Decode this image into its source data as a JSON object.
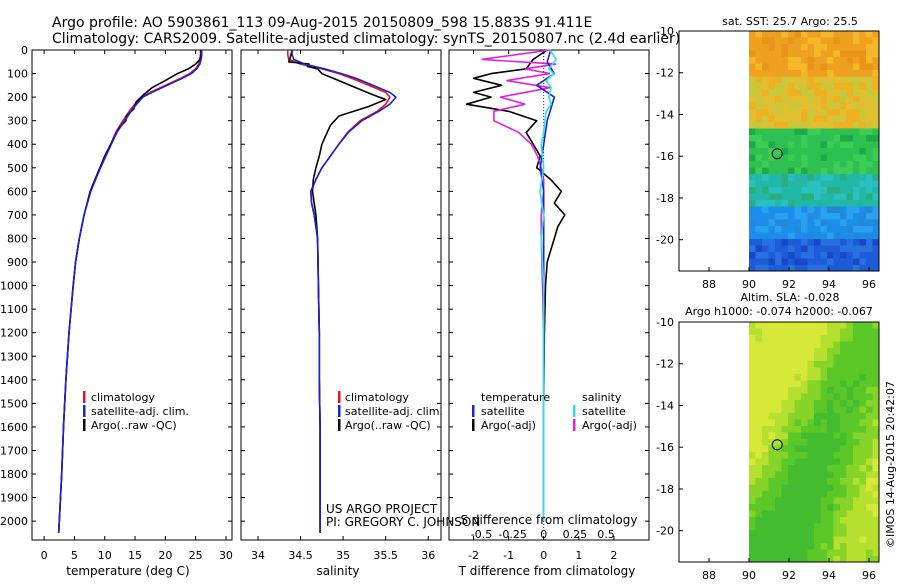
{
  "header": {
    "title_line1": "Argo profile: AO 5903861_113 09-Aug-2015 20150809_598 15.883S 91.411E",
    "title_line2": "Climatology: CARS2009. Satellite-adjusted climatology: synTS_20150807.nc (2.4d earlier)"
  },
  "colors": {
    "climatology": "#e8141a",
    "satellite": "#1a22d6",
    "argo": "#000000",
    "salinity_satellite": "#2ee0e8",
    "salinity_argo": "#e020e0"
  },
  "stamp": "©IMOS 14-Aug-2015 20:42:07",
  "credits": {
    "line1": "US ARGO PROJECT",
    "line2": "PI: GREGORY C. JOHNSON"
  },
  "chart_data": [
    {
      "id": "temperature",
      "type": "line",
      "xlabel": "temperature (deg C)",
      "ylabel": "",
      "xlim": [
        -2,
        31
      ],
      "ylim": [
        2080,
        0
      ],
      "xticks": [
        "0",
        "5",
        "10",
        "15",
        "20",
        "25",
        "30"
      ],
      "xtick_values": [
        0,
        5,
        10,
        15,
        20,
        25,
        30
      ],
      "yticks": [
        "0",
        "100",
        "200",
        "300",
        "400",
        "500",
        "600",
        "700",
        "800",
        "900",
        "1000",
        "1100",
        "1200",
        "1300",
        "1400",
        "1500",
        "1600",
        "1700",
        "1800",
        "1900",
        "2000"
      ],
      "ytick_values": [
        0,
        100,
        200,
        300,
        400,
        500,
        600,
        700,
        800,
        900,
        1000,
        1100,
        1200,
        1300,
        1400,
        1500,
        1600,
        1700,
        1800,
        1900,
        2000
      ],
      "legend": [
        "climatology",
        "satellite-adj. clim.",
        "Argo(..raw -QC)"
      ],
      "series": [
        {
          "name": "climatology",
          "depth": [
            0,
            20,
            40,
            60,
            80,
            100,
            120,
            150,
            180,
            200,
            250,
            300,
            350,
            400,
            450,
            500,
            550,
            600,
            700,
            800,
            900,
            1000,
            1200,
            1400,
            1600,
            1800,
            2000,
            2050
          ],
          "values": [
            25.8,
            25.8,
            25.7,
            25.5,
            25.0,
            24.0,
            22.5,
            20.0,
            17.5,
            16.0,
            14.3,
            13.0,
            11.8,
            11.0,
            10.1,
            9.2,
            8.4,
            7.6,
            6.6,
            5.8,
            5.2,
            4.8,
            4.1,
            3.6,
            3.2,
            2.9,
            2.5,
            2.4
          ]
        },
        {
          "name": "satellite-adj. clim.",
          "depth": [
            0,
            20,
            40,
            60,
            80,
            100,
            120,
            150,
            180,
            200,
            250,
            300,
            350,
            400,
            450,
            500,
            550,
            600,
            700,
            800,
            900,
            1000,
            1200,
            1400,
            1600,
            1800,
            2000,
            2050
          ],
          "values": [
            26.0,
            26.0,
            25.9,
            25.7,
            25.2,
            24.3,
            22.8,
            20.3,
            17.8,
            16.3,
            14.6,
            13.3,
            12.0,
            11.1,
            10.2,
            9.3,
            8.5,
            7.7,
            6.6,
            5.8,
            5.2,
            4.8,
            4.1,
            3.6,
            3.2,
            2.9,
            2.5,
            2.4
          ]
        },
        {
          "name": "Argo(..raw -QC)",
          "depth": [
            0,
            20,
            40,
            60,
            80,
            100,
            130,
            160,
            190,
            220,
            250,
            280,
            300,
            330,
            360,
            400,
            450,
            500,
            550,
            600,
            700,
            800,
            900,
            1000,
            1200,
            1400,
            1600,
            1800,
            2000,
            2050
          ],
          "values": [
            25.9,
            25.9,
            25.7,
            25.0,
            23.8,
            22.0,
            20.0,
            17.8,
            16.4,
            15.2,
            14.8,
            13.6,
            13.5,
            12.4,
            11.8,
            11.0,
            10.0,
            9.2,
            8.4,
            7.6,
            6.6,
            5.8,
            5.2,
            4.8,
            4.1,
            3.6,
            3.2,
            2.9,
            2.5,
            2.4
          ]
        }
      ]
    },
    {
      "id": "salinity",
      "type": "line",
      "xlabel": "salinity",
      "ylabel": "",
      "xlim": [
        33.8,
        36.15
      ],
      "ylim": [
        2080,
        0
      ],
      "xticks": [
        "34",
        "34.5",
        "35",
        "35.5",
        "36"
      ],
      "xtick_values": [
        34,
        34.5,
        35,
        35.5,
        36
      ],
      "legend": [
        "climatology",
        "satellite-adj. clim.",
        "Argo(..raw -QC)"
      ],
      "series": [
        {
          "name": "climatology",
          "depth": [
            0,
            20,
            40,
            60,
            80,
            100,
            120,
            150,
            180,
            200,
            230,
            260,
            300,
            350,
            400,
            450,
            500,
            550,
            600,
            650,
            700,
            800,
            1000,
            1200,
            1400,
            1600,
            1800,
            2000,
            2050
          ],
          "values": [
            34.35,
            34.35,
            34.36,
            34.5,
            34.75,
            34.95,
            35.1,
            35.3,
            35.5,
            35.55,
            35.5,
            35.4,
            35.2,
            35.05,
            34.95,
            34.85,
            34.75,
            34.68,
            34.62,
            34.63,
            34.66,
            34.7,
            34.71,
            34.72,
            34.72,
            34.73,
            34.73,
            34.73,
            34.73
          ]
        },
        {
          "name": "satellite-adj. clim.",
          "depth": [
            0,
            20,
            40,
            60,
            80,
            100,
            120,
            150,
            180,
            200,
            230,
            260,
            300,
            350,
            400,
            450,
            500,
            550,
            600,
            650,
            700,
            800,
            1000,
            1200,
            1400,
            1600,
            1800,
            2000,
            2050
          ],
          "values": [
            34.4,
            34.4,
            34.42,
            34.55,
            34.78,
            34.98,
            35.15,
            35.35,
            35.55,
            35.62,
            35.55,
            35.42,
            35.22,
            35.06,
            34.95,
            34.85,
            34.75,
            34.68,
            34.62,
            34.63,
            34.66,
            34.7,
            34.71,
            34.72,
            34.72,
            34.73,
            34.73,
            34.73,
            34.73
          ]
        },
        {
          "name": "Argo(..raw -QC)",
          "depth": [
            0,
            30,
            50,
            60,
            70,
            80,
            100,
            130,
            160,
            190,
            210,
            240,
            280,
            320,
            360,
            400,
            450,
            500,
            550,
            600,
            650,
            700,
            800,
            1000,
            1200,
            1400,
            1600,
            1800,
            2000,
            2050
          ],
          "values": [
            34.4,
            34.38,
            34.36,
            34.6,
            34.58,
            34.7,
            34.75,
            34.95,
            35.15,
            35.35,
            35.5,
            35.3,
            34.95,
            34.85,
            34.8,
            34.75,
            34.72,
            34.68,
            34.65,
            34.64,
            34.66,
            34.68,
            34.7,
            34.71,
            34.72,
            34.72,
            34.73,
            34.73,
            34.73,
            34.73
          ]
        }
      ]
    },
    {
      "id": "differences",
      "type": "line",
      "xlabel": "T difference from climatology",
      "xlabel_top": "S difference from climatology",
      "xlim": [
        -2.7,
        3.0
      ],
      "ylim": [
        2080,
        0
      ],
      "xticks": [
        "-2",
        "-1",
        "0",
        "1",
        "2"
      ],
      "xtick_values": [
        -2,
        -1,
        0,
        1,
        2
      ],
      "xticks_salinity": [
        "-0.5",
        "-0.25",
        "0",
        "0.25",
        "0.5"
      ],
      "xtick_values_salinity": [
        -0.5,
        -0.25,
        0,
        0.25,
        0.5
      ],
      "legend_titles": [
        "temperature",
        "salinity"
      ],
      "legend": [
        "satellite",
        "Argo(-adj)",
        "satellite",
        "Argo(-adj)"
      ],
      "series": [
        {
          "name": "T satellite",
          "depth": [
            0,
            50,
            100,
            150,
            200,
            250,
            300,
            400,
            500,
            600,
            700,
            800,
            1000,
            1500,
            2000
          ],
          "values": [
            0.2,
            0.1,
            0.3,
            -0.2,
            0.3,
            0.2,
            0.1,
            0.0,
            -0.1,
            0.0,
            0.0,
            0.0,
            0.0,
            0.0,
            0.0
          ]
        },
        {
          "name": "T Argo(-adj)",
          "depth": [
            0,
            40,
            80,
            100,
            120,
            150,
            180,
            200,
            230,
            260,
            300,
            350,
            400,
            450,
            500,
            550,
            600,
            650,
            700,
            750,
            800,
            900,
            1000,
            1200,
            1500,
            1800,
            2000
          ],
          "values": [
            0.1,
            -0.3,
            -0.5,
            -1.5,
            -2.0,
            -1.2,
            -2.0,
            -1.5,
            -2.2,
            -1.0,
            -0.2,
            -0.5,
            -0.3,
            -0.1,
            -0.2,
            0.2,
            0.5,
            0.3,
            0.6,
            0.4,
            0.3,
            0.1,
            0.05,
            0.02,
            0.0,
            0.0,
            0.0
          ]
        },
        {
          "name": "S satellite",
          "depth": [
            0,
            40,
            80,
            100,
            130,
            160,
            200,
            230,
            260,
            300,
            350,
            400,
            500,
            600,
            700,
            800,
            1000,
            1500,
            2000
          ],
          "values": [
            0.05,
            0.1,
            0.04,
            0.08,
            0.02,
            0.06,
            0.04,
            0.06,
            0.02,
            0.01,
            0.0,
            -0.02,
            0.0,
            -0.03,
            0.0,
            -0.02,
            0.0,
            0.0,
            0.0
          ]
        },
        {
          "name": "S Argo(-adj)",
          "depth": [
            0,
            40,
            60,
            80,
            100,
            130,
            160,
            200,
            230,
            260,
            300,
            350,
            400,
            450,
            500,
            550,
            600,
            700,
            800,
            1000,
            1200,
            1500,
            1800,
            2000
          ],
          "values": [
            0.05,
            -0.5,
            0.1,
            -0.15,
            0.05,
            -0.3,
            0.05,
            -0.35,
            -0.15,
            -0.4,
            -0.4,
            -0.2,
            -0.1,
            -0.05,
            -0.02,
            0.0,
            0.0,
            -0.02,
            -0.02,
            -0.01,
            0.0,
            0.0,
            0.0,
            0.0
          ]
        }
      ]
    },
    {
      "id": "sst_map",
      "type": "heatmap",
      "title": "sat. SST: 25.7  Argo: 25.5",
      "xlim": [
        86.5,
        96.5
      ],
      "ylim": [
        -21.5,
        -10
      ],
      "xticks": [
        "88",
        "90",
        "92",
        "94",
        "96"
      ],
      "xtick_values": [
        88,
        90,
        92,
        94,
        96
      ],
      "yticks": [
        "-10",
        "-12",
        "-14",
        "-16",
        "-18",
        "-20"
      ],
      "ytick_values": [
        -10,
        -12,
        -14,
        -16,
        -18,
        -20
      ],
      "data_lon_min": 90,
      "float_lon": 91.411,
      "float_lat": -15.883
    },
    {
      "id": "sla_map",
      "type": "heatmap",
      "title": "Altim. SLA: -0.028",
      "subtitle": "Argo h1000: -0.074  h2000: -0.067",
      "xlim": [
        86.5,
        96.5
      ],
      "ylim": [
        -21.5,
        -10
      ],
      "xticks": [
        "88",
        "90",
        "92",
        "94",
        "96"
      ],
      "xtick_values": [
        88,
        90,
        92,
        94,
        96
      ],
      "yticks": [
        "-10",
        "-12",
        "-14",
        "-16",
        "-18",
        "-20"
      ],
      "ytick_values": [
        -10,
        -12,
        -14,
        -16,
        -18,
        -20
      ],
      "data_lon_min": 90,
      "float_lon": 91.411,
      "float_lat": -15.883
    }
  ]
}
